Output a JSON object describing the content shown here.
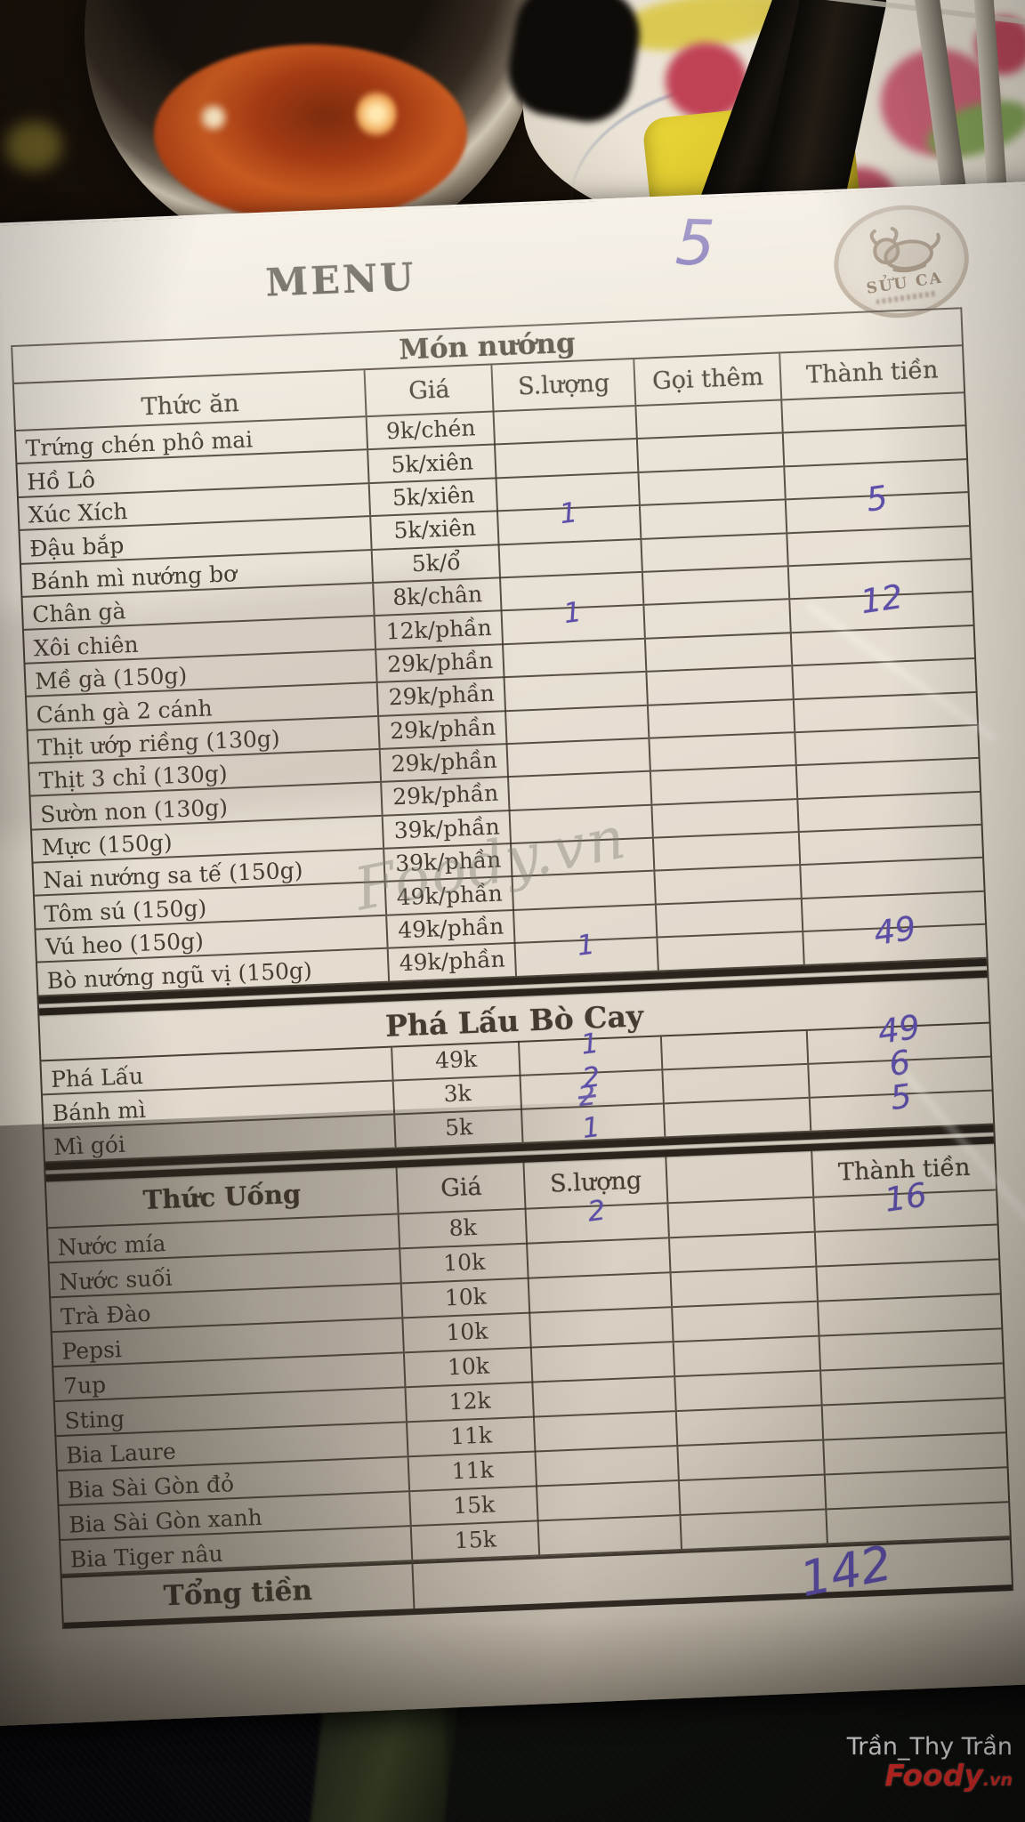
{
  "menu": {
    "title": "MENU",
    "table_number": "5",
    "stamp_text": "SỬU CA",
    "total_label": "Tổng tiền",
    "total_value": "142",
    "sections": [
      {
        "title": "Món nướng",
        "header": [
          "Thức ăn",
          "Giá",
          "S.lượng",
          "Gọi thêm",
          "Thành tiền"
        ],
        "items": [
          {
            "name": "Trứng chén phô mai",
            "price": "9k/chén"
          },
          {
            "name": "Hồ Lô",
            "price": "5k/xiên"
          },
          {
            "name": "Xúc Xích",
            "price": "5k/xiên"
          },
          {
            "name": "Đậu bắp",
            "price": "5k/xiên",
            "qty": "1",
            "total": "5"
          },
          {
            "name": "Bánh mì nướng bơ",
            "price": "5k/ổ"
          },
          {
            "name": "Chân gà",
            "price": "8k/chân"
          },
          {
            "name": "Xôi chiên",
            "price": "12k/phần",
            "qty": "1",
            "total": "12"
          },
          {
            "name": "Mề gà (150g)",
            "price": "29k/phần"
          },
          {
            "name": "Cánh gà 2 cánh",
            "price": "29k/phần"
          },
          {
            "name": "Thịt ướp riềng (130g)",
            "price": "29k/phần"
          },
          {
            "name": "Thịt 3 chỉ (130g)",
            "price": "29k/phần"
          },
          {
            "name": "Sườn non (130g)",
            "price": "29k/phần"
          },
          {
            "name": "Mực (150g)",
            "price": "39k/phần"
          },
          {
            "name": "Nai nướng sa tế (150g)",
            "price": "39k/phần"
          },
          {
            "name": "Tôm sú (150g)",
            "price": "49k/phần"
          },
          {
            "name": "Vú heo (150g)",
            "price": "49k/phần"
          },
          {
            "name": "Bò nướng ngũ vị (150g)",
            "price": "49k/phần",
            "qty": "1",
            "total": "49"
          }
        ]
      },
      {
        "title": "Phá Lấu Bò Cay",
        "items": [
          {
            "name": "Phá Lấu",
            "price": "49k",
            "qty": "1",
            "total": "49"
          },
          {
            "name": "Bánh mì",
            "price": "3k",
            "qty": "2",
            "total": "6"
          },
          {
            "name": "Mì gói",
            "price": "5k",
            "qty_struck": "2",
            "qty": "1",
            "total": "5"
          }
        ]
      },
      {
        "header": [
          "Thức Uống",
          "Giá",
          "S.lượng",
          "",
          "Thành tiền"
        ],
        "items": [
          {
            "name": "Nước mía",
            "price": "8k",
            "qty": "2",
            "total": "16"
          },
          {
            "name": "Nước suối",
            "price": "10k"
          },
          {
            "name": "Trà Đào",
            "price": "10k"
          },
          {
            "name": "Pepsi",
            "price": "10k"
          },
          {
            "name": "7up",
            "price": "10k"
          },
          {
            "name": "Sting",
            "price": "12k"
          },
          {
            "name": "Bia Laure",
            "price": "11k"
          },
          {
            "name": "Bia Sài Gòn đỏ",
            "price": "11k"
          },
          {
            "name": "Bia Sài Gòn xanh",
            "price": "15k"
          },
          {
            "name": "Bia Tiger nâu",
            "price": "15k"
          }
        ]
      }
    ]
  },
  "photo": {
    "center_watermark": "Foody.vn",
    "credit_name": "Trần_Thy Trần",
    "brand": "Foody",
    "brand_tld": ".vn"
  },
  "colors": {
    "ink": "#5d4fa8",
    "foody_red": "#e8302a",
    "paper": "#e6dfd3"
  }
}
